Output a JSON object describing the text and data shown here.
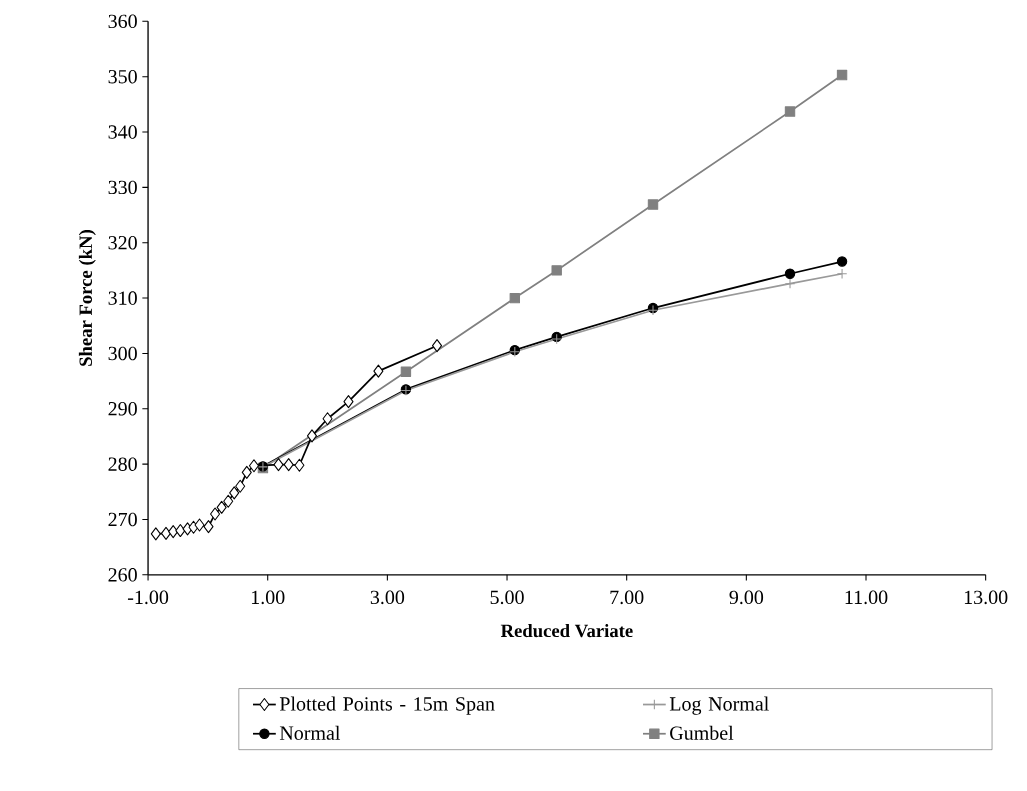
{
  "chart_data": {
    "type": "line",
    "xlabel": "Reduced Variate",
    "ylabel": "Shear Force (kN)",
    "xlim": [
      -1,
      13
    ],
    "ylim": [
      260,
      360
    ],
    "xticks": [
      {
        "value": -1,
        "label": "-1.00"
      },
      {
        "value": 1,
        "label": "1.00"
      },
      {
        "value": 3,
        "label": "3.00"
      },
      {
        "value": 5,
        "label": "5.00"
      },
      {
        "value": 7,
        "label": "7.00"
      },
      {
        "value": 9,
        "label": "9.00"
      },
      {
        "value": 11,
        "label": "11.00"
      },
      {
        "value": 13,
        "label": "13.00"
      }
    ],
    "yticks": [
      260,
      270,
      280,
      290,
      300,
      310,
      320,
      330,
      340,
      350,
      360
    ],
    "grid": false,
    "legend": "bottom",
    "line_style": "solid",
    "series": [
      {
        "name": "Plotted Points - 15m Span",
        "color": "#000000",
        "marker": "diamond",
        "x": [
          -0.87,
          -0.7,
          -0.58,
          -0.46,
          -0.34,
          -0.24,
          -0.14,
          0.01,
          0.12,
          0.23,
          0.34,
          0.44,
          0.54,
          0.65,
          0.77,
          1.18,
          1.35,
          1.53,
          1.74,
          2.0,
          2.35,
          2.85,
          3.83
        ],
        "values": [
          267.4,
          267.5,
          267.8,
          268.0,
          268.3,
          268.6,
          269.0,
          268.7,
          271.0,
          272.2,
          273.3,
          274.8,
          276.0,
          278.5,
          279.7,
          279.9,
          279.9,
          279.8,
          285.1,
          288.2,
          291.3,
          296.8,
          301.4
        ]
      },
      {
        "name": "Log Normal",
        "color": "#999999",
        "marker": "cross",
        "x": [
          0.92,
          3.31,
          5.13,
          5.83,
          7.44,
          9.73,
          10.6
        ],
        "values": [
          279.5,
          293.3,
          300.3,
          302.6,
          307.8,
          312.6,
          314.4
        ]
      },
      {
        "name": "Normal",
        "color": "#000000",
        "marker": "circle",
        "x": [
          0.92,
          3.31,
          5.13,
          5.83,
          7.44,
          9.73,
          10.6
        ],
        "values": [
          279.6,
          293.5,
          300.6,
          303.0,
          308.2,
          314.4,
          316.6
        ]
      },
      {
        "name": "Gumbel",
        "color": "#808080",
        "marker": "square",
        "x": [
          0.92,
          3.31,
          5.13,
          5.83,
          7.44,
          9.73,
          10.6
        ],
        "values": [
          279.3,
          296.7,
          310.0,
          315.0,
          326.9,
          343.7,
          350.3
        ]
      }
    ]
  }
}
